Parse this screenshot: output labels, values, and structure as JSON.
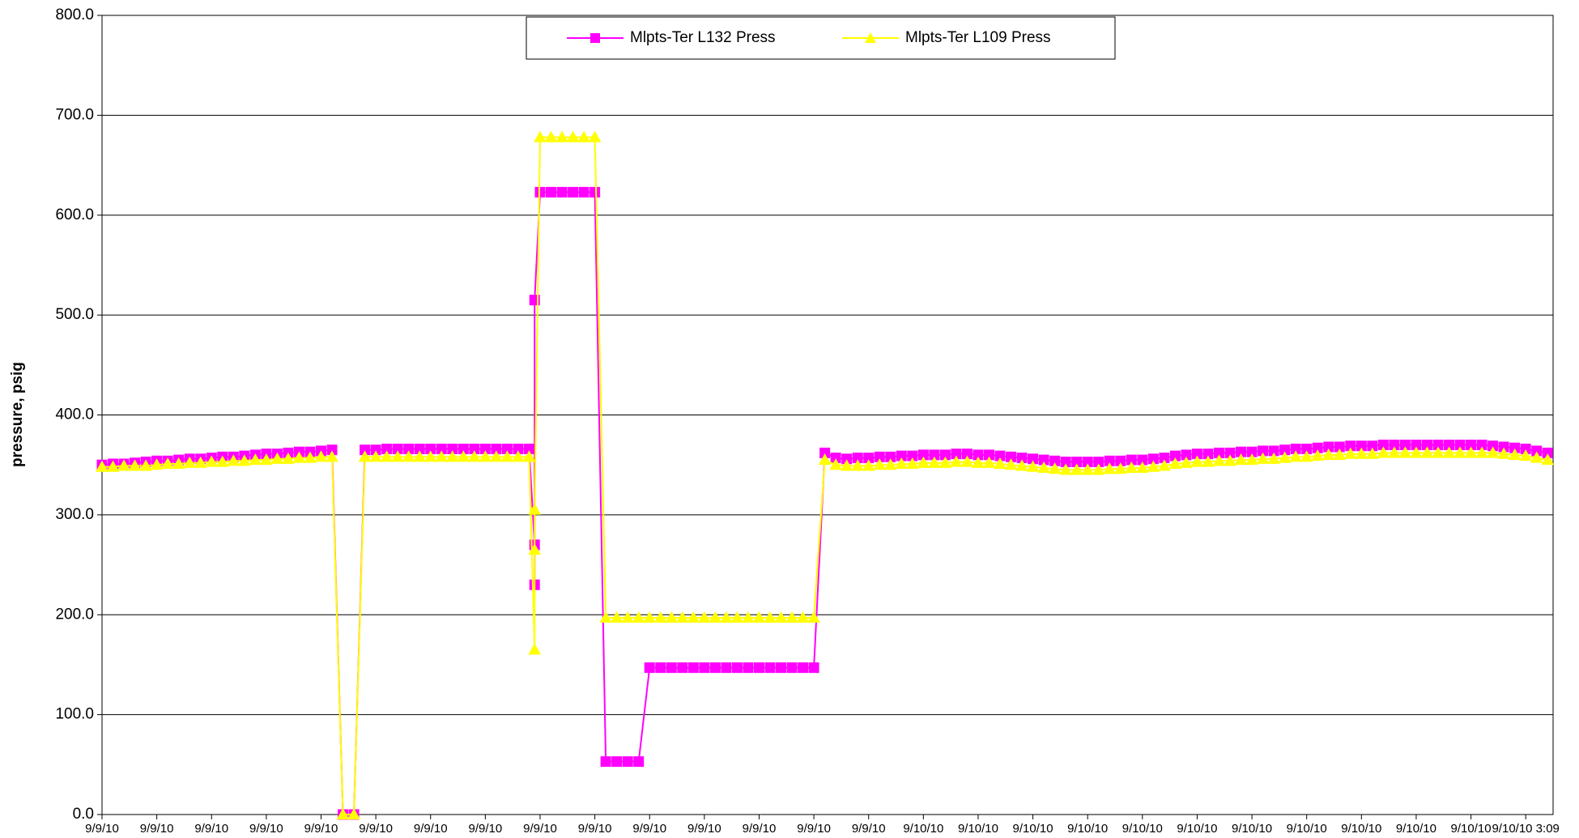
{
  "chart_data": {
    "type": "line",
    "y_label": "pressure, psig",
    "legend": "top-center",
    "grid": true,
    "x": [
      0,
      2,
      4,
      6,
      8,
      10,
      12,
      14,
      16,
      18,
      20,
      22,
      24,
      26,
      28,
      30,
      32,
      34,
      36,
      38,
      40,
      42,
      44,
      46,
      48,
      50,
      52,
      54,
      56,
      58,
      60,
      62,
      64,
      66,
      68,
      70,
      72,
      74,
      76,
      78,
      79,
      79,
      79,
      80,
      82,
      84,
      86,
      88,
      90,
      92,
      94,
      96,
      98,
      100,
      102,
      104,
      106,
      108,
      110,
      112,
      114,
      116,
      118,
      120,
      122,
      124,
      126,
      128,
      130,
      132,
      134,
      136,
      138,
      140,
      142,
      144,
      146,
      148,
      150,
      152,
      154,
      156,
      158,
      160,
      162,
      164,
      166,
      168,
      170,
      172,
      174,
      176,
      178,
      180,
      182,
      184,
      186,
      188,
      190,
      192,
      194,
      196,
      198,
      200,
      202,
      204,
      206,
      208,
      210,
      212,
      214,
      216,
      218,
      220,
      222,
      224,
      226,
      228,
      230,
      232,
      234,
      236,
      238,
      240,
      242,
      244,
      246,
      248,
      250,
      252,
      254,
      256,
      258,
      260,
      262,
      264
    ],
    "xlim": [
      0,
      265
    ],
    "xticks": [
      {
        "value": 0,
        "label": "9/9/10"
      },
      {
        "value": 10,
        "label": "9/9/10"
      },
      {
        "value": 20,
        "label": "9/9/10"
      },
      {
        "value": 30,
        "label": "9/9/10"
      },
      {
        "value": 40,
        "label": "9/9/10"
      },
      {
        "value": 50,
        "label": "9/9/10"
      },
      {
        "value": 60,
        "label": "9/9/10"
      },
      {
        "value": 70,
        "label": "9/9/10"
      },
      {
        "value": 80,
        "label": "9/9/10"
      },
      {
        "value": 90,
        "label": "9/9/10"
      },
      {
        "value": 100,
        "label": "9/9/10"
      },
      {
        "value": 110,
        "label": "9/9/10"
      },
      {
        "value": 120,
        "label": "9/9/10"
      },
      {
        "value": 130,
        "label": "9/9/10"
      },
      {
        "value": 140,
        "label": "9/9/10"
      },
      {
        "value": 150,
        "label": "9/10/10"
      },
      {
        "value": 160,
        "label": "9/10/10"
      },
      {
        "value": 170,
        "label": "9/10/10"
      },
      {
        "value": 180,
        "label": "9/10/10"
      },
      {
        "value": 190,
        "label": "9/10/10"
      },
      {
        "value": 200,
        "label": "9/10/10"
      },
      {
        "value": 210,
        "label": "9/10/10"
      },
      {
        "value": 220,
        "label": "9/10/10"
      },
      {
        "value": 230,
        "label": "9/10/10"
      },
      {
        "value": 240,
        "label": "9/10/10"
      },
      {
        "value": 250,
        "label": "9/10/10"
      },
      {
        "value": 260,
        "label": "9/10/10 3:09"
      }
    ],
    "ylim": [
      0,
      800
    ],
    "yticks": [
      {
        "value": 0,
        "label": "0.0"
      },
      {
        "value": 100,
        "label": "100.0"
      },
      {
        "value": 200,
        "label": "200.0"
      },
      {
        "value": 300,
        "label": "300.0"
      },
      {
        "value": 400,
        "label": "400.0"
      },
      {
        "value": 500,
        "label": "500.0"
      },
      {
        "value": 600,
        "label": "600.0"
      },
      {
        "value": 700,
        "label": "700.0"
      },
      {
        "value": 800,
        "label": "800.0"
      }
    ],
    "series": [
      {
        "name": "Mlpts-Ter L132 Press",
        "color": "#ff00ff",
        "marker": "square",
        "values": [
          350,
          351,
          351,
          352,
          353,
          354,
          354,
          355,
          356,
          356,
          357,
          358,
          358,
          359,
          360,
          361,
          361,
          362,
          363,
          363,
          364,
          365,
          0,
          0,
          365,
          365,
          366,
          366,
          366,
          366,
          366,
          366,
          366,
          366,
          366,
          366,
          366,
          366,
          366,
          366,
          270,
          230,
          515,
          623,
          623,
          623,
          623,
          623,
          623,
          53,
          53,
          53,
          53,
          147,
          147,
          147,
          147,
          147,
          147,
          147,
          147,
          147,
          147,
          147,
          147,
          147,
          147,
          147,
          147,
          362,
          357,
          356,
          357,
          357,
          358,
          358,
          359,
          359,
          360,
          360,
          360,
          361,
          361,
          360,
          360,
          359,
          358,
          357,
          356,
          355,
          354,
          353,
          353,
          353,
          353,
          354,
          354,
          355,
          355,
          356,
          357,
          359,
          360,
          361,
          361,
          362,
          362,
          363,
          363,
          364,
          364,
          365,
          366,
          366,
          367,
          368,
          368,
          369,
          369,
          369,
          370,
          370,
          370,
          370,
          370,
          370,
          370,
          370,
          370,
          370,
          369,
          368,
          367,
          366,
          364,
          362
        ]
      },
      {
        "name": "Mlpts-Ter L109 Press",
        "color": "#ffff00",
        "marker": "triangle",
        "values": [
          348,
          348,
          349,
          349,
          349,
          350,
          351,
          351,
          352,
          352,
          353,
          353,
          354,
          354,
          355,
          355,
          356,
          356,
          357,
          357,
          358,
          358,
          0,
          0,
          358,
          358,
          358,
          358,
          358,
          358,
          358,
          358,
          358,
          358,
          358,
          358,
          358,
          358,
          358,
          358,
          165,
          265,
          305,
          678,
          678,
          678,
          678,
          678,
          678,
          197,
          197,
          197,
          197,
          197,
          197,
          197,
          197,
          197,
          197,
          197,
          197,
          197,
          197,
          197,
          197,
          197,
          197,
          197,
          197,
          355,
          350,
          349,
          349,
          349,
          350,
          350,
          351,
          351,
          352,
          352,
          352,
          353,
          353,
          352,
          352,
          351,
          350,
          349,
          348,
          347,
          346,
          345,
          345,
          345,
          345,
          346,
          346,
          347,
          347,
          348,
          349,
          351,
          352,
          353,
          353,
          354,
          354,
          355,
          355,
          356,
          356,
          357,
          358,
          358,
          359,
          360,
          360,
          361,
          361,
          361,
          362,
          362,
          362,
          362,
          362,
          362,
          362,
          362,
          362,
          362,
          362,
          361,
          360,
          359,
          357,
          355
        ]
      }
    ]
  }
}
